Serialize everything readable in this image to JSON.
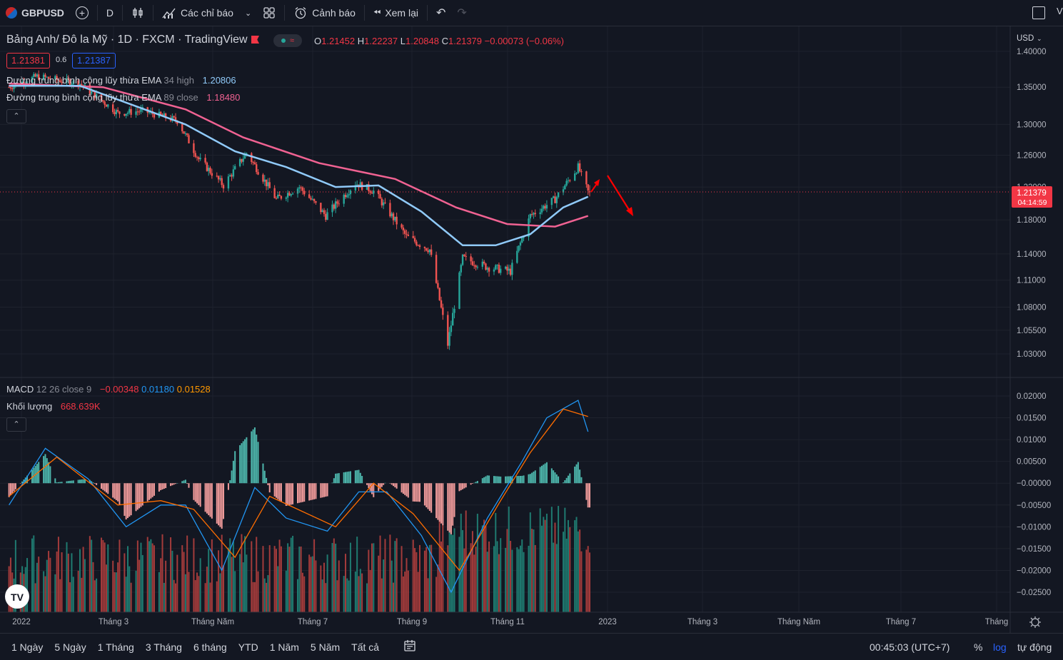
{
  "toolbar": {
    "symbol": "GBPUSD",
    "interval": "D",
    "indicators_label": "Các chỉ báo",
    "alerts_label": "Cảnh báo",
    "replay_label": "Xem lại",
    "cut_text": "V"
  },
  "legend": {
    "title": "Bảng Anh/ Đô la Mỹ · 1D · FXCM · TradingView",
    "ohlc": {
      "o_label": "O",
      "o": "1.21452",
      "h_label": "H",
      "h": "1.22237",
      "l_label": "L",
      "l": "1.20848",
      "c_label": "C",
      "c": "1.21379",
      "change": "−0.00073 (−0.06%)"
    },
    "bid": "1.21381",
    "spread": "0.6",
    "ask": "1.21387",
    "ema1_label": "Đường trung bình cộng lũy thừa EMA",
    "ema1_params": "34 high",
    "ema1_value": "1.20806",
    "ema2_label": "Đường trung bình cộng lũy thừa EMA",
    "ema2_params": "89 close",
    "ema2_value": "1.18480"
  },
  "macd_legend": {
    "label": "MACD",
    "params": "12 26 close 9",
    "hist": "−0.00348",
    "macd": "0.01180",
    "signal": "0.01528",
    "volume_label": "Khối lượng",
    "volume_value": "668.639K"
  },
  "price_axis": {
    "currency": "USD",
    "ticks": [
      "1.40000",
      "1.35000",
      "1.30000",
      "1.26000",
      "1.22000",
      "1.18000",
      "1.14000",
      "1.11000",
      "1.08000",
      "1.05500",
      "1.03000"
    ],
    "last_price": "1.21379",
    "countdown": "04:14:59"
  },
  "macd_axis": {
    "ticks": [
      "0.02000",
      "0.01500",
      "0.01000",
      "0.00500",
      "−0.00000",
      "−0.00500",
      "−0.01000",
      "−0.01500",
      "−0.02000",
      "−0.02500"
    ]
  },
  "time_axis": {
    "labels": [
      "2022",
      "Tháng 3",
      "Tháng Năm",
      "Tháng 7",
      "Tháng 9",
      "Tháng 11",
      "2023",
      "Tháng 3",
      "Tháng Năm",
      "Tháng 7",
      "Tháng"
    ]
  },
  "bottom": {
    "ranges": [
      "1 Ngày",
      "5 Ngày",
      "1 Tháng",
      "3 Tháng",
      "6 tháng",
      "YTD",
      "1 Năm",
      "5 Năm",
      "Tất cả"
    ],
    "clock": "00:45:03 (UTC+7)",
    "percent": "%",
    "log": "log",
    "auto": "tự động"
  },
  "colors": {
    "up": "#26a69a",
    "down": "#ef5350",
    "ema34": "#90caf9",
    "ema89": "#f06292",
    "macd": "#2196f3",
    "signal": "#ff6d00",
    "arrow": "#ff0000",
    "accent": "#2962ff"
  },
  "chart_data": {
    "type": "candlestick",
    "title": "Bảng Anh/ Đô la Mỹ · 1D · FXCM · TradingView",
    "price_ylim": [
      1.02,
      1.41
    ],
    "price_path": [
      {
        "t": "2022-01-03",
        "p": 1.35
      },
      {
        "t": "2022-01-20",
        "p": 1.365
      },
      {
        "t": "2022-02-15",
        "p": 1.355
      },
      {
        "t": "2022-03-10",
        "p": 1.315
      },
      {
        "t": "2022-03-25",
        "p": 1.318
      },
      {
        "t": "2022-04-15",
        "p": 1.305
      },
      {
        "t": "2022-04-28",
        "p": 1.255
      },
      {
        "t": "2022-05-13",
        "p": 1.222
      },
      {
        "t": "2022-05-27",
        "p": 1.263
      },
      {
        "t": "2022-06-14",
        "p": 1.205
      },
      {
        "t": "2022-06-28",
        "p": 1.22
      },
      {
        "t": "2022-07-14",
        "p": 1.185
      },
      {
        "t": "2022-08-01",
        "p": 1.225
      },
      {
        "t": "2022-08-12",
        "p": 1.215
      },
      {
        "t": "2022-09-01",
        "p": 1.16
      },
      {
        "t": "2022-09-15",
        "p": 1.145
      },
      {
        "t": "2022-09-26",
        "p": 1.04
      },
      {
        "t": "2022-10-05",
        "p": 1.135
      },
      {
        "t": "2022-10-20",
        "p": 1.125
      },
      {
        "t": "2022-11-03",
        "p": 1.12
      },
      {
        "t": "2022-11-15",
        "p": 1.185
      },
      {
        "t": "2022-11-30",
        "p": 1.205
      },
      {
        "t": "2022-12-14",
        "p": 1.245
      },
      {
        "t": "2022-12-20",
        "p": 1.214
      }
    ],
    "ema34_path": [
      {
        "t": "2022-01-03",
        "p": 1.352
      },
      {
        "t": "2022-02-15",
        "p": 1.352
      },
      {
        "t": "2022-03-20",
        "p": 1.325
      },
      {
        "t": "2022-04-20",
        "p": 1.3
      },
      {
        "t": "2022-05-20",
        "p": 1.265
      },
      {
        "t": "2022-06-20",
        "p": 1.245
      },
      {
        "t": "2022-07-20",
        "p": 1.22
      },
      {
        "t": "2022-08-15",
        "p": 1.222
      },
      {
        "t": "2022-09-10",
        "p": 1.19
      },
      {
        "t": "2022-10-05",
        "p": 1.15
      },
      {
        "t": "2022-10-25",
        "p": 1.15
      },
      {
        "t": "2022-11-15",
        "p": 1.163
      },
      {
        "t": "2022-12-05",
        "p": 1.195
      },
      {
        "t": "2022-12-20",
        "p": 1.20806
      }
    ],
    "ema89_path": [
      {
        "t": "2022-01-03",
        "p": 1.355
      },
      {
        "t": "2022-03-01",
        "p": 1.35
      },
      {
        "t": "2022-04-20",
        "p": 1.32
      },
      {
        "t": "2022-05-25",
        "p": 1.283
      },
      {
        "t": "2022-07-10",
        "p": 1.25
      },
      {
        "t": "2022-08-25",
        "p": 1.23
      },
      {
        "t": "2022-10-01",
        "p": 1.195
      },
      {
        "t": "2022-11-01",
        "p": 1.175
      },
      {
        "t": "2022-11-30",
        "p": 1.172
      },
      {
        "t": "2022-12-20",
        "p": 1.1848
      }
    ],
    "macd_ylim": [
      -0.028,
      0.021
    ],
    "macd_path": [
      {
        "t": "2022-01-03",
        "v": -0.005
      },
      {
        "t": "2022-01-25",
        "v": 0.008
      },
      {
        "t": "2022-02-20",
        "v": 0.001
      },
      {
        "t": "2022-03-15",
        "v": -0.01
      },
      {
        "t": "2022-04-05",
        "v": -0.005
      },
      {
        "t": "2022-04-20",
        "v": -0.005
      },
      {
        "t": "2022-05-12",
        "v": -0.02
      },
      {
        "t": "2022-06-01",
        "v": -0.001
      },
      {
        "t": "2022-06-20",
        "v": -0.008
      },
      {
        "t": "2022-07-15",
        "v": -0.011
      },
      {
        "t": "2022-08-03",
        "v": -0.002
      },
      {
        "t": "2022-08-20",
        "v": -0.002
      },
      {
        "t": "2022-09-10",
        "v": -0.012
      },
      {
        "t": "2022-09-28",
        "v": -0.025
      },
      {
        "t": "2022-10-20",
        "v": -0.008
      },
      {
        "t": "2022-11-10",
        "v": 0.005
      },
      {
        "t": "2022-11-25",
        "v": 0.015
      },
      {
        "t": "2022-12-14",
        "v": 0.019
      },
      {
        "t": "2022-12-20",
        "v": 0.0118
      }
    ],
    "signal_path": [
      {
        "t": "2022-01-03",
        "v": -0.003
      },
      {
        "t": "2022-02-01",
        "v": 0.006
      },
      {
        "t": "2022-03-10",
        "v": -0.005
      },
      {
        "t": "2022-04-05",
        "v": -0.004
      },
      {
        "t": "2022-04-25",
        "v": -0.006
      },
      {
        "t": "2022-05-20",
        "v": -0.017
      },
      {
        "t": "2022-06-10",
        "v": -0.003
      },
      {
        "t": "2022-07-20",
        "v": -0.01
      },
      {
        "t": "2022-08-12",
        "v": 0.0
      },
      {
        "t": "2022-09-05",
        "v": -0.007
      },
      {
        "t": "2022-10-03",
        "v": -0.02
      },
      {
        "t": "2022-10-28",
        "v": -0.004
      },
      {
        "t": "2022-11-15",
        "v": 0.007
      },
      {
        "t": "2022-12-05",
        "v": 0.017
      },
      {
        "t": "2022-12-20",
        "v": 0.01528
      }
    ],
    "x_labels": [
      "2022",
      "Tháng 3",
      "Tháng Năm",
      "Tháng 7",
      "Tháng 9",
      "Tháng 11",
      "2023",
      "Tháng 3",
      "Tháng Năm",
      "Tháng 7",
      "Tháng"
    ]
  }
}
